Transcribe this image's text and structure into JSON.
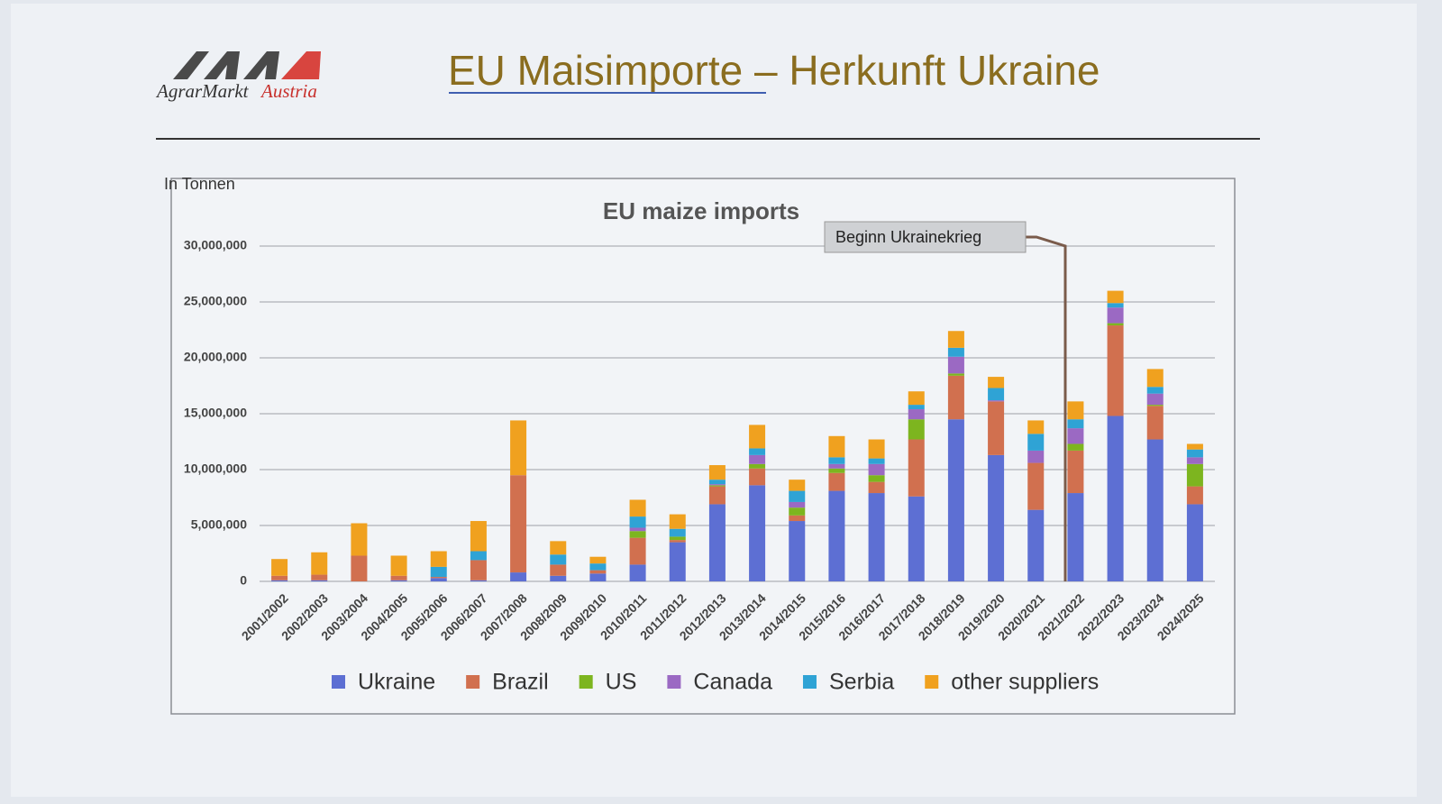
{
  "logo": {
    "name": "AgrarMarkt",
    "country": "Austria"
  },
  "slide_title": "EU Maisimporte – Herkunft Ukraine",
  "chart_data": {
    "type": "stacked_bar",
    "title": "EU maize imports",
    "y_label": "In Tonnen",
    "annotation": "Beginn Ukrainekrieg",
    "categories": [
      "2001/2002",
      "2002/2003",
      "2003/2004",
      "2004/2005",
      "2005/2006",
      "2006/2007",
      "2007/2008",
      "2008/2009",
      "2009/2010",
      "2010/2011",
      "2011/2012",
      "2012/2013",
      "2013/2014",
      "2014/2015",
      "2015/2016",
      "2016/2017",
      "2017/2018",
      "2018/2019",
      "2019/2020",
      "2020/2021",
      "2021/2022",
      "2022/2023",
      "2023/2024",
      "2024/2025"
    ],
    "series": [
      {
        "name": "Ukraine",
        "color": "#5d6fd3",
        "values": [
          100000,
          100000,
          0,
          100000,
          300000,
          100000,
          800000,
          500000,
          700000,
          1500000,
          3500000,
          6900000,
          8600000,
          5400000,
          8100000,
          7900000,
          7600000,
          14500000,
          11300000,
          6400000,
          7900000,
          14800000,
          12700000,
          6900000
        ]
      },
      {
        "name": "Brazil",
        "color": "#d1704f",
        "values": [
          400000,
          500000,
          2300000,
          400000,
          100000,
          1800000,
          8700000,
          1000000,
          300000,
          2400000,
          200000,
          1600000,
          1500000,
          500000,
          1600000,
          1000000,
          5100000,
          3900000,
          4800000,
          4200000,
          3800000,
          8100000,
          3000000,
          1600000
        ]
      },
      {
        "name": "US",
        "color": "#7db51f",
        "values": [
          0,
          0,
          0,
          0,
          0,
          0,
          0,
          0,
          0,
          600000,
          300000,
          100000,
          400000,
          700000,
          400000,
          600000,
          1800000,
          200000,
          0,
          0,
          600000,
          200000,
          100000,
          2000000
        ]
      },
      {
        "name": "Canada",
        "color": "#9b69c3",
        "values": [
          0,
          0,
          0,
          0,
          0,
          0,
          0,
          0,
          0,
          300000,
          0,
          100000,
          800000,
          500000,
          400000,
          1000000,
          900000,
          1500000,
          100000,
          1100000,
          1400000,
          1400000,
          1000000,
          600000
        ]
      },
      {
        "name": "Serbia",
        "color": "#2fa3d5",
        "values": [
          0,
          0,
          0,
          0,
          900000,
          800000,
          0,
          900000,
          600000,
          1000000,
          700000,
          400000,
          600000,
          1000000,
          600000,
          500000,
          400000,
          800000,
          1100000,
          1500000,
          800000,
          400000,
          600000,
          700000
        ]
      },
      {
        "name": "other suppliers",
        "color": "#f0a11f",
        "values": [
          1500000,
          2000000,
          2900000,
          1800000,
          1400000,
          2700000,
          4900000,
          1200000,
          600000,
          1500000,
          1300000,
          1300000,
          2100000,
          1000000,
          1900000,
          1700000,
          1200000,
          1500000,
          1000000,
          1200000,
          1600000,
          1100000,
          1600000,
          500000
        ]
      }
    ],
    "ylim": [
      0,
      30000000
    ],
    "yticks": [
      0,
      {
        "value": 5000000,
        "label": "5,000,000"
      },
      {
        "value": 10000000,
        "label": "10,000,000"
      },
      {
        "value": 15000000,
        "label": "15,000,000"
      },
      {
        "value": 20000000,
        "label": "20,000,000"
      },
      {
        "value": 25000000,
        "label": "25,000,000"
      },
      {
        "value": 30000000,
        "label": "30,000,000"
      }
    ],
    "grid": true,
    "legend": "bottom"
  }
}
